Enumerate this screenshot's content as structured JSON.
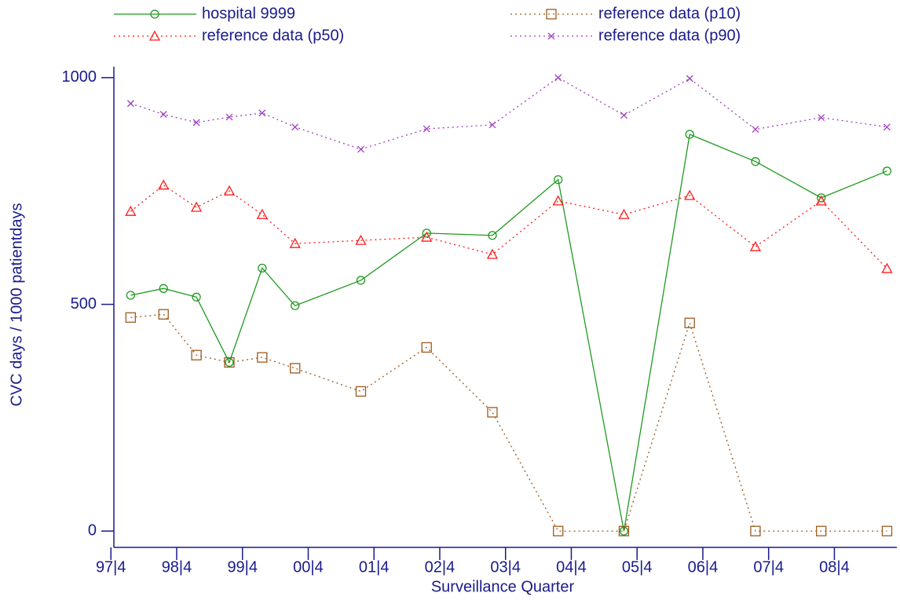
{
  "chart_data": {
    "type": "line",
    "x_label": "Surveillance Quarter",
    "y_label": "CVC days / 1000 patientdays",
    "x": [
      0.3,
      0.8,
      1.3,
      1.8,
      2.3,
      2.8,
      3.8,
      4.8,
      5.8,
      6.8,
      7.8,
      8.8,
      9.8,
      10.8,
      11.8
    ],
    "series": [
      {
        "name": "hospital 9999",
        "color": "#1f9a1f",
        "line_style": "solid",
        "marker": "circle",
        "values": [
          520,
          535,
          516,
          372,
          580,
          497,
          553,
          657,
          652,
          775,
          0,
          875,
          815,
          735,
          794
        ]
      },
      {
        "name": "reference data (p10)",
        "color": "#9c5a1e",
        "line_style": "dotted",
        "marker": "square",
        "values": [
          471,
          478,
          388,
          372,
          383,
          359,
          308,
          405,
          262,
          0,
          0,
          459,
          0,
          0,
          0
        ]
      },
      {
        "name": "reference data (p50)",
        "color": "#ff1a1a",
        "line_style": "dotted",
        "marker": "triangle",
        "values": [
          705,
          763,
          714,
          750,
          698,
          634,
          641,
          648,
          610,
          728,
          698,
          740,
          627,
          728,
          579
        ]
      },
      {
        "name": "reference data (p90)",
        "color": "#a040c0",
        "line_style": "dotted",
        "marker": "x",
        "values": [
          943,
          919,
          901,
          913,
          922,
          891,
          842,
          887,
          896,
          1000,
          917,
          998,
          886,
          912,
          891
        ]
      }
    ],
    "xlim": [
      -0.17,
      11.95
    ],
    "xticks": [
      {
        "value": 0,
        "label": "97|4"
      },
      {
        "value": 1,
        "label": "98|4"
      },
      {
        "value": 2,
        "label": "99|4"
      },
      {
        "value": 3,
        "label": "00|4"
      },
      {
        "value": 4,
        "label": "01|4"
      },
      {
        "value": 5,
        "label": "02|4"
      },
      {
        "value": 6,
        "label": "03|4"
      },
      {
        "value": 7,
        "label": "04|4"
      },
      {
        "value": 8,
        "label": "05|4"
      },
      {
        "value": 9,
        "label": "06|4"
      },
      {
        "value": 10,
        "label": "07|4"
      },
      {
        "value": 11,
        "label": "08|4"
      }
    ],
    "ylim": [
      -36,
      1024
    ],
    "yticks": [
      0,
      500,
      1000
    ],
    "axis_color": "#1a1a8c",
    "grid": false
  }
}
